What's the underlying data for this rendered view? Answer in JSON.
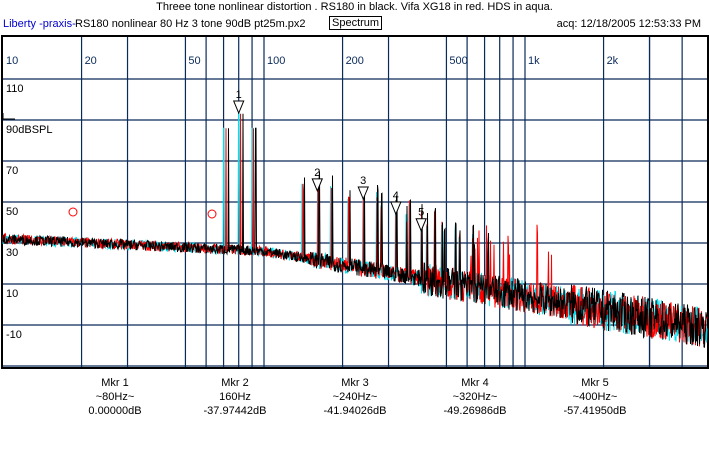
{
  "header": {
    "title": "Threee tone nonlinear distortion . RS180 in black. Vifa XG18 in red. HDS in aqua.",
    "brand": "Liberty -praxis-",
    "file": "RS180 nonlinear 80 Hz 3 tone 90dB pt25m.px2",
    "mode_button": "Spectrum",
    "acq": "acq: 12/18/2005 12:53:33 PM"
  },
  "chart_data": {
    "type": "line",
    "title": "Threee tone nonlinear distortion . RS180 in black. Vifa XG18 in red. HDS in aqua.",
    "xscale": "log",
    "xlim": [
      10,
      5200
    ],
    "x_tick_labels": [
      {
        "f": 10,
        "label": "10"
      },
      {
        "f": 20,
        "label": "20"
      },
      {
        "f": 50,
        "label": "50"
      },
      {
        "f": 100,
        "label": "100"
      },
      {
        "f": 200,
        "label": "200"
      },
      {
        "f": 500,
        "label": "500"
      },
      {
        "f": 1000,
        "label": "1k"
      },
      {
        "f": 2000,
        "label": "2k"
      }
    ],
    "ylim": [
      -30,
      130
    ],
    "y_tick_labels": [
      {
        "v": 110,
        "label": "110"
      },
      {
        "v": 90,
        "label": "90dBSPL"
      },
      {
        "v": 70,
        "label": "70"
      },
      {
        "v": 50,
        "label": "50"
      },
      {
        "v": 30,
        "label": "30"
      },
      {
        "v": 10,
        "label": "10"
      },
      {
        "v": -10,
        "label": "-10"
      }
    ],
    "series": [
      {
        "name": "HDS",
        "color": "#00e0f0"
      },
      {
        "name": "Vifa XG18",
        "color": "#ff0000"
      },
      {
        "name": "RS180",
        "color": "#000000"
      }
    ],
    "reference_level_db": 93.4,
    "markers": [
      {
        "id": "1",
        "label": "Mkr 1",
        "freq_label": "~80Hz~",
        "value_label": "0.00000dB",
        "freq": 80,
        "rel_db": 0
      },
      {
        "id": "2",
        "label": "Mkr 2",
        "freq_label": "160Hz",
        "value_label": "-37.97442dB",
        "freq": 160,
        "rel_db": -37.97442
      },
      {
        "id": "3",
        "label": "Mkr 3",
        "freq_label": "~240Hz~",
        "value_label": "-41.94026dB",
        "freq": 240,
        "rel_db": -41.94026
      },
      {
        "id": "4",
        "label": "Mkr 4",
        "freq_label": "~320Hz~",
        "value_label": "-49.26986dB",
        "freq": 320,
        "rel_db": -49.26986
      },
      {
        "id": "5",
        "label": "Mkr 5",
        "freq_label": "~400Hz~",
        "value_label": "-57.41950dB",
        "freq": 400,
        "rel_db": -57.4195
      }
    ]
  }
}
